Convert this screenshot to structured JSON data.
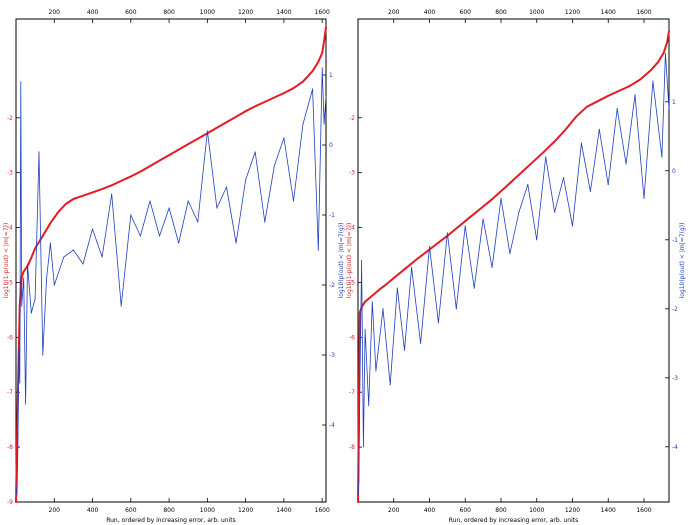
{
  "colors": {
    "red_series": "#e31b23",
    "blue_series": "#1f3fbf",
    "axis": "#000000",
    "left_axis_text": "#d62728",
    "right_axis_text": "#1f3fbf"
  },
  "chart_data": [
    {
      "type": "line",
      "title": "",
      "xlabel": "Run, ordered by increasing error, arb. units",
      "ylabel_left": "log10(1-p(out) < |m|=7))",
      "ylabel_right": "log10(p(out) < |m|=7(g))",
      "xlim": [
        0,
        1620
      ],
      "xticks": [
        200,
        400,
        600,
        800,
        1000,
        1200,
        1400,
        1600
      ],
      "xtick_labels": [
        "200",
        "400",
        "600",
        "800",
        "1000",
        "1200",
        "1400",
        "1600"
      ],
      "left_ylim": [
        -9,
        -0.2
      ],
      "left_yticks": [
        -9,
        -8,
        -7,
        -6,
        -5,
        -4,
        -3,
        -2
      ],
      "left_ytick_labels": [
        "-9",
        "-8",
        "-7",
        "-6",
        "-5",
        "-4",
        "-3",
        "-2"
      ],
      "right_ylim": [
        -5.1,
        1.8
      ],
      "right_yticks": [
        -4,
        -3,
        -2,
        -1,
        0,
        1
      ],
      "right_ytick_labels": [
        "-4",
        "-3",
        "-2",
        "-1",
        "0",
        "1"
      ],
      "grid": false,
      "legend": false,
      "series": [
        {
          "axis": "left",
          "color": "#e31b23",
          "x": [
            0,
            10,
            20,
            30,
            40,
            60,
            80,
            100,
            140,
            180,
            220,
            260,
            300,
            350,
            400,
            450,
            500,
            550,
            600,
            650,
            700,
            750,
            800,
            850,
            900,
            950,
            1000,
            1050,
            1100,
            1150,
            1200,
            1250,
            1300,
            1350,
            1400,
            1450,
            1500,
            1550,
            1580,
            1600,
            1610,
            1620
          ],
          "values": [
            -9.0,
            -7.0,
            -5.4,
            -4.9,
            -4.8,
            -4.7,
            -4.55,
            -4.38,
            -4.15,
            -3.92,
            -3.72,
            -3.57,
            -3.48,
            -3.42,
            -3.36,
            -3.3,
            -3.23,
            -3.15,
            -3.07,
            -2.98,
            -2.88,
            -2.78,
            -2.68,
            -2.58,
            -2.48,
            -2.38,
            -2.28,
            -2.18,
            -2.08,
            -1.98,
            -1.88,
            -1.79,
            -1.71,
            -1.63,
            -1.55,
            -1.46,
            -1.34,
            -1.15,
            -0.98,
            -0.82,
            -0.6,
            -0.35
          ]
        },
        {
          "axis": "right",
          "color": "#1f3fbf",
          "x": [
            0,
            5,
            10,
            15,
            20,
            25,
            30,
            40,
            50,
            60,
            80,
            100,
            120,
            140,
            160,
            180,
            200,
            250,
            300,
            350,
            400,
            450,
            500,
            550,
            600,
            650,
            700,
            750,
            800,
            850,
            900,
            950,
            1000,
            1050,
            1100,
            1150,
            1200,
            1250,
            1300,
            1350,
            1400,
            1450,
            1500,
            1550,
            1580,
            1600,
            1610,
            1620
          ],
          "values": [
            -4.9,
            -5.0,
            -4.3,
            -2.9,
            -3.4,
            0.9,
            -2.3,
            -1.9,
            -3.7,
            -1.7,
            -2.4,
            -2.2,
            -0.1,
            -3.0,
            -1.9,
            -1.4,
            -2.0,
            -1.6,
            -1.5,
            -1.7,
            -1.2,
            -1.6,
            -0.7,
            -2.3,
            -1.0,
            -1.3,
            -0.8,
            -1.3,
            -0.9,
            -1.4,
            -0.8,
            -1.1,
            0.2,
            -0.9,
            -0.6,
            -1.4,
            -0.5,
            -0.1,
            -1.1,
            -0.3,
            0.1,
            -0.8,
            0.3,
            0.8,
            -1.5,
            1.1,
            0.3,
            0.7
          ]
        }
      ]
    },
    {
      "type": "line",
      "title": "",
      "xlabel": "Run, ordered by increasing error, arb. units",
      "ylabel_left": "log10(1-p(out) < |m|=7))",
      "ylabel_right": "log10(p(out) < |m|=7(g))",
      "xlim": [
        0,
        1740
      ],
      "xticks": [
        200,
        400,
        600,
        800,
        1000,
        1200,
        1400,
        1600
      ],
      "xtick_labels": [
        "200",
        "400",
        "600",
        "800",
        "1000",
        "1200",
        "1400",
        "1600"
      ],
      "left_ylim": [
        -9,
        -0.2
      ],
      "left_yticks": [
        -8,
        -7,
        -6,
        -5,
        -4,
        -3,
        -2
      ],
      "left_ytick_labels": [
        "-8",
        "-7",
        "-6",
        "-5",
        "-4",
        "-3",
        "-2"
      ],
      "right_ylim": [
        -4.8,
        2.2
      ],
      "right_yticks": [
        -4,
        -3,
        -2,
        -1,
        0,
        1
      ],
      "right_ytick_labels": [
        "-4",
        "-3",
        "-2",
        "-1",
        "0",
        "1"
      ],
      "grid": false,
      "legend": false,
      "series": [
        {
          "axis": "left",
          "color": "#e31b23",
          "x": [
            0,
            10,
            20,
            40,
            80,
            120,
            160,
            200,
            260,
            320,
            380,
            440,
            500,
            560,
            620,
            680,
            740,
            800,
            860,
            920,
            980,
            1040,
            1100,
            1160,
            1220,
            1280,
            1340,
            1400,
            1460,
            1520,
            1580,
            1640,
            1680,
            1710,
            1730,
            1740
          ],
          "values": [
            -9.0,
            -5.55,
            -5.45,
            -5.35,
            -5.24,
            -5.13,
            -5.03,
            -4.92,
            -4.76,
            -4.6,
            -4.45,
            -4.3,
            -4.15,
            -3.99,
            -3.83,
            -3.67,
            -3.51,
            -3.34,
            -3.16,
            -2.98,
            -2.8,
            -2.62,
            -2.43,
            -2.22,
            -1.98,
            -1.8,
            -1.7,
            -1.6,
            -1.51,
            -1.42,
            -1.3,
            -1.13,
            -0.98,
            -0.82,
            -0.62,
            -0.42
          ]
        },
        {
          "axis": "right",
          "color": "#1f3fbf",
          "x": [
            0,
            5,
            10,
            20,
            30,
            40,
            60,
            80,
            100,
            140,
            180,
            220,
            260,
            300,
            350,
            400,
            450,
            500,
            550,
            600,
            650,
            700,
            750,
            800,
            850,
            900,
            950,
            1000,
            1050,
            1100,
            1150,
            1200,
            1250,
            1300,
            1350,
            1400,
            1450,
            1500,
            1550,
            1600,
            1650,
            1700,
            1720,
            1740
          ],
          "values": [
            -4.7,
            -4.5,
            -3.2,
            -1.3,
            -4.0,
            -2.3,
            -3.4,
            -1.9,
            -2.9,
            -2.0,
            -3.1,
            -1.7,
            -2.6,
            -1.4,
            -2.5,
            -1.1,
            -2.2,
            -0.9,
            -2.0,
            -0.8,
            -1.7,
            -0.7,
            -1.4,
            -0.4,
            -1.2,
            -0.6,
            -0.2,
            -1.0,
            0.2,
            -0.6,
            -0.1,
            -0.8,
            0.4,
            -0.3,
            0.6,
            -0.2,
            0.9,
            0.1,
            1.1,
            -0.4,
            1.3,
            0.2,
            1.7,
            0.9
          ]
        }
      ]
    }
  ]
}
